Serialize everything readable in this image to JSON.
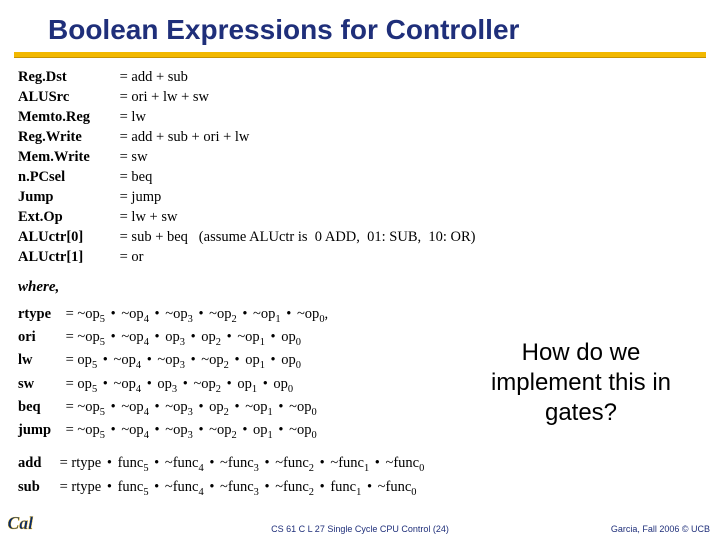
{
  "title": "Boolean Expressions for Controller",
  "colors": {
    "title_color": "#1f2f7a",
    "underline_color": "#f2b800",
    "footer_color": "#1f2f7a",
    "background": "#ffffff",
    "logo_blue": "#0a2b6b",
    "logo_gold": "#f2b800"
  },
  "fonts": {
    "title_family": "Arial",
    "title_size_pt": 21,
    "body_family": "Times New Roman",
    "body_size_pt": 11,
    "callout_family": "Arial",
    "callout_size_pt": 18,
    "footer_size_pt": 7
  },
  "signals": [
    {
      "name": "Reg.Dst",
      "expr": "= add + sub"
    },
    {
      "name": "ALUSrc",
      "expr": "= ori + lw + sw"
    },
    {
      "name": "Memto.Reg",
      "expr": "= lw"
    },
    {
      "name": "Reg.Write",
      "expr": "= add + sub + ori + lw"
    },
    {
      "name": "Mem.Write",
      "expr": "= sw"
    },
    {
      "name": "n.PCsel",
      "expr": "= beq"
    },
    {
      "name": "Jump",
      "expr": "= jump"
    },
    {
      "name": "Ext.Op",
      "expr": "= lw + sw"
    },
    {
      "name": "ALUctr[0]",
      "expr": "= sub + beq   (assume ALUctr is  0 ADD,  01: SUB,  10: OR)"
    },
    {
      "name": "ALUctr[1]",
      "expr": "= or"
    }
  ],
  "where_label": "where,",
  "opcodes": [
    {
      "name": "rtype",
      "bits": [
        "~op",
        "~op",
        "~op",
        "~op",
        "~op",
        "~op"
      ],
      "subs": [
        5,
        4,
        3,
        2,
        1,
        0
      ],
      "trail": ","
    },
    {
      "name": "ori",
      "bits": [
        "~op",
        "~op",
        " op",
        " op",
        "~op",
        " op"
      ],
      "subs": [
        5,
        4,
        3,
        2,
        1,
        0
      ],
      "trail": ""
    },
    {
      "name": "lw",
      "bits": [
        " op",
        "~op",
        "~op",
        "~op",
        " op",
        " op"
      ],
      "subs": [
        5,
        4,
        3,
        2,
        1,
        0
      ],
      "trail": ""
    },
    {
      "name": "sw",
      "bits": [
        " op",
        "~op",
        " op",
        "~op",
        " op",
        " op"
      ],
      "subs": [
        5,
        4,
        3,
        2,
        1,
        0
      ],
      "trail": ""
    },
    {
      "name": "beq",
      "bits": [
        "~op",
        "~op",
        "~op",
        " op",
        "~op",
        "~op"
      ],
      "subs": [
        5,
        4,
        3,
        2,
        1,
        0
      ],
      "trail": ""
    },
    {
      "name": "jump",
      "bits": [
        "~op",
        "~op",
        "~op",
        "~op",
        " op",
        "~op"
      ],
      "subs": [
        5,
        4,
        3,
        2,
        1,
        0
      ],
      "trail": ""
    }
  ],
  "funcs": [
    {
      "name": "add",
      "prefix": "rtype",
      "bits": [
        " func",
        "~func",
        "~func",
        "~func",
        "~func",
        "~func"
      ],
      "subs": [
        5,
        4,
        3,
        2,
        1,
        0
      ]
    },
    {
      "name": "sub",
      "prefix": "rtype",
      "bits": [
        " func",
        "~func",
        "~func",
        "~func",
        " func",
        "~func"
      ],
      "subs": [
        5,
        4,
        3,
        2,
        1,
        0
      ]
    }
  ],
  "dot": "•",
  "callout": "How do we implement this in gates?",
  "footer_center": "CS 61 C L 27 Single Cycle CPU Control (24)",
  "footer_right": "Garcia, Fall 2006 © UCB"
}
